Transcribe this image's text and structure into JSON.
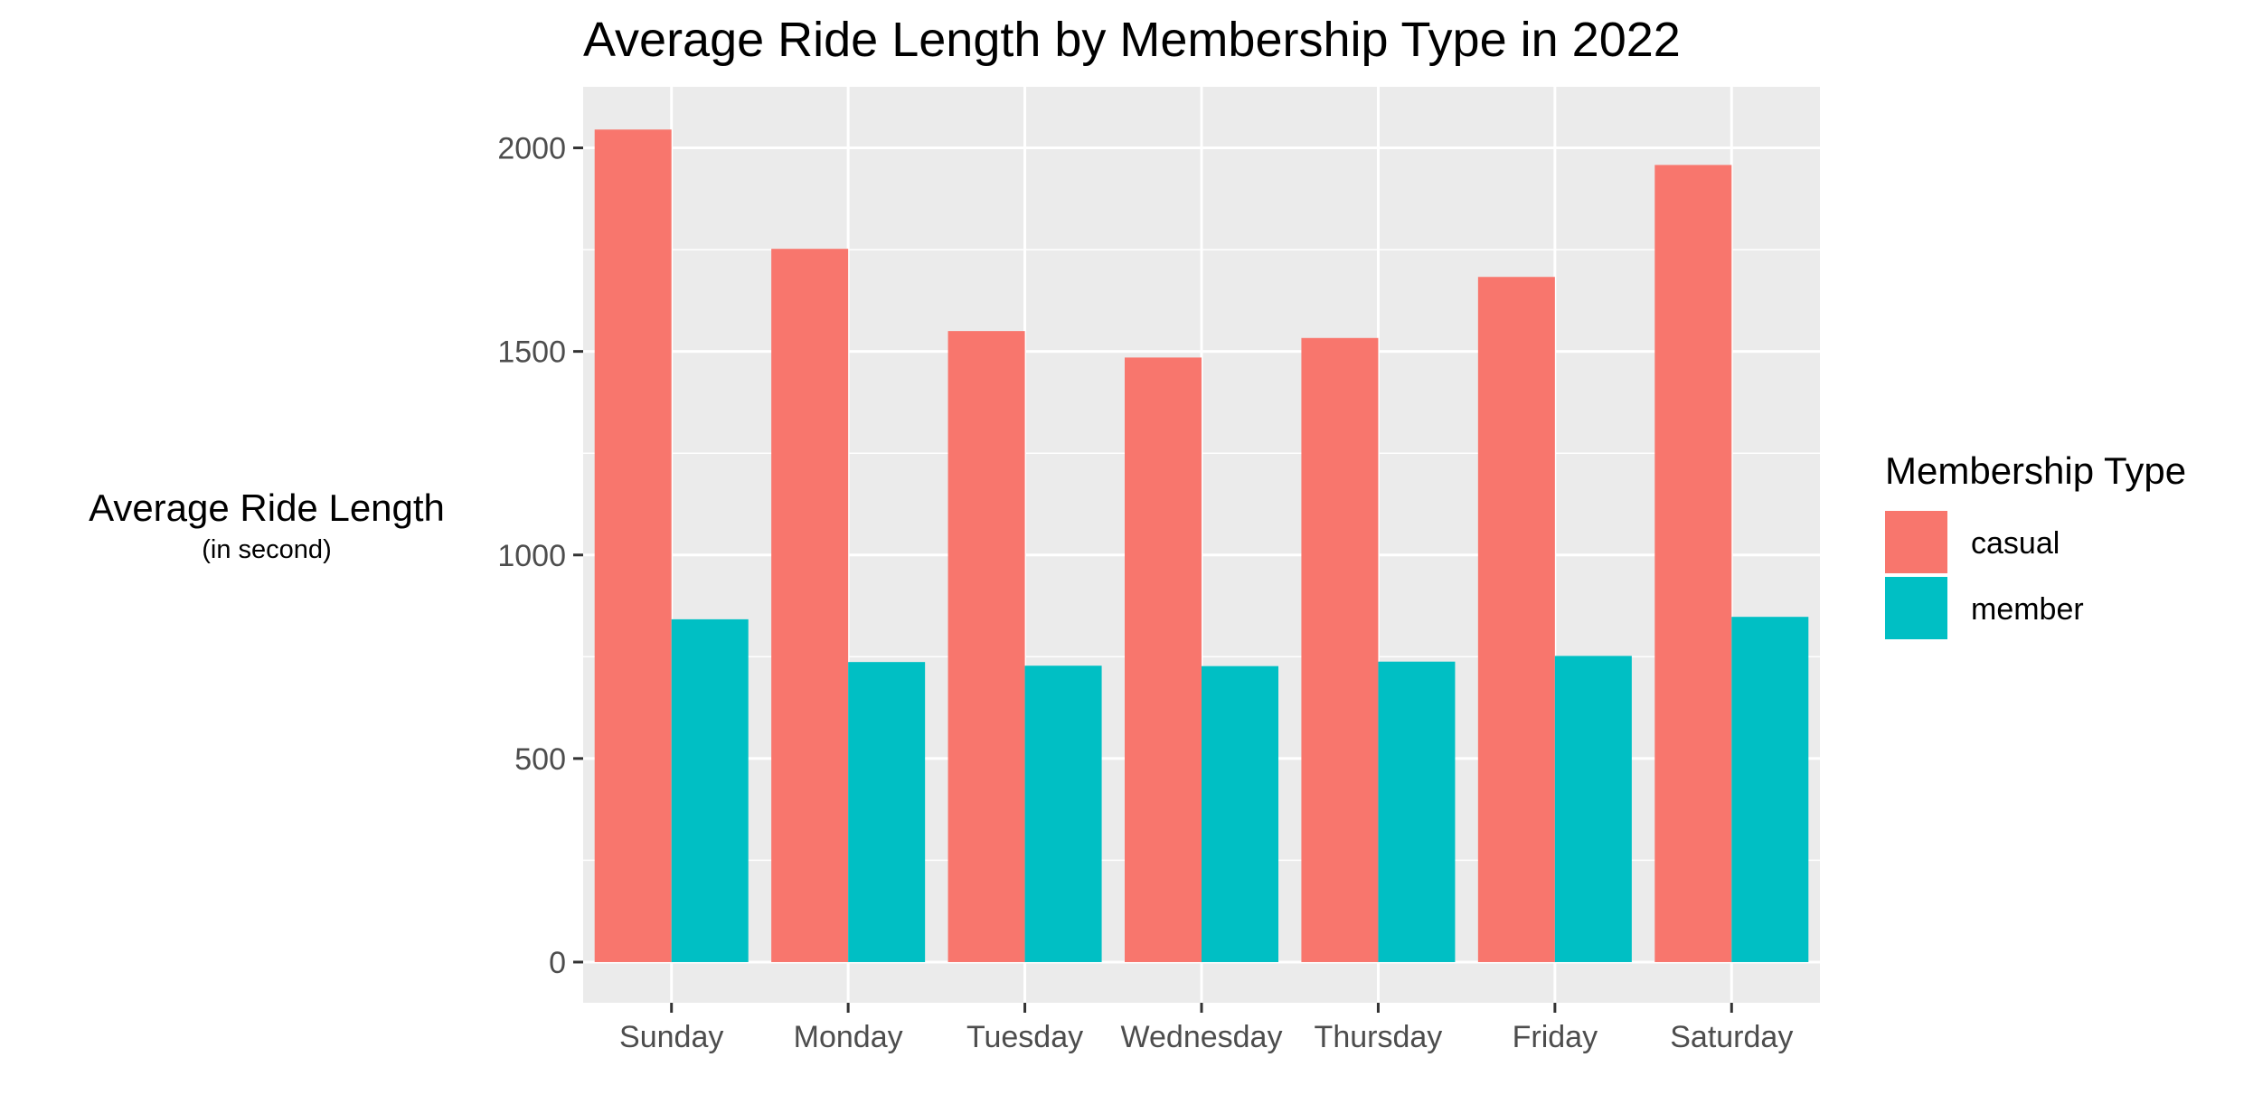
{
  "chart_data": {
    "type": "bar",
    "title": "Average Ride Length by Membership Type in 2022",
    "xlabel": "",
    "ylabel": "Average Ride Length",
    "ylabel_sub": "(in second)",
    "categories": [
      "Sunday",
      "Monday",
      "Tuesday",
      "Wednesday",
      "Thursday",
      "Friday",
      "Saturday"
    ],
    "series": [
      {
        "name": "casual",
        "color": "#F8766D",
        "values": [
          2045,
          1752,
          1550,
          1485,
          1533,
          1683,
          1958
        ]
      },
      {
        "name": "member",
        "color": "#00BFC4",
        "values": [
          842,
          737,
          728,
          727,
          738,
          752,
          848
        ]
      }
    ],
    "ylim": [
      -100,
      2150
    ],
    "yticks": [
      0,
      500,
      1000,
      1500,
      2000
    ],
    "grid": true,
    "legend": {
      "title": "Membership Type",
      "position": "right"
    },
    "panel_background": "#EBEBEB",
    "grid_color": "#FFFFFF"
  }
}
